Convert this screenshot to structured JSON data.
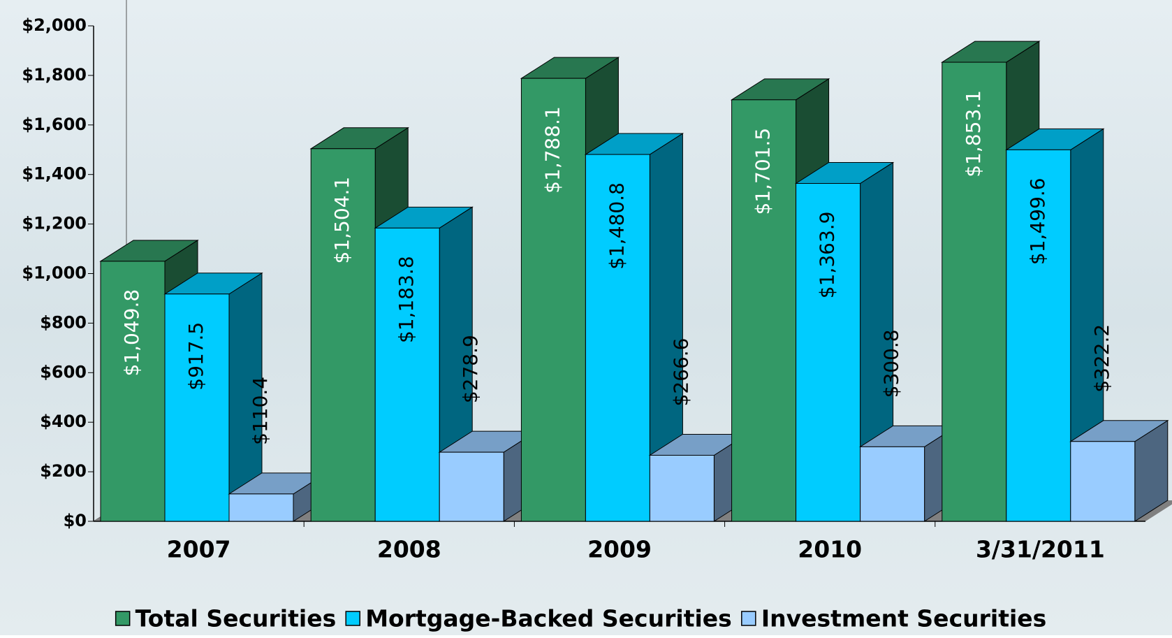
{
  "chart_data": {
    "type": "bar3d",
    "categories": [
      "2007",
      "2008",
      "2009",
      "2010",
      "3/31/2011"
    ],
    "series": [
      {
        "name": "Total Securities",
        "color": "#339966",
        "values": [
          1049.8,
          1504.1,
          1788.1,
          1701.5,
          1853.1
        ],
        "value_labels": [
          "$1,049.8",
          "$1,504.1",
          "$1,788.1",
          "$1,701.5",
          "$1,853.1"
        ]
      },
      {
        "name": "Mortgage-Backed Securities",
        "color": "#00ccff",
        "values": [
          917.5,
          1183.8,
          1480.8,
          1363.9,
          1499.6
        ],
        "value_labels": [
          "$917.5",
          "$1,183.8",
          "$1,480.8",
          "$1,363.9",
          "$1,499.6"
        ]
      },
      {
        "name": "Investment Securities",
        "color": "#99ccff",
        "values": [
          110.4,
          278.9,
          266.6,
          300.8,
          322.2
        ],
        "value_labels": [
          "$110.4",
          "$278.9",
          "$266.6",
          "$300.8",
          "$322.2"
        ]
      }
    ],
    "ylim": [
      0,
      2000
    ],
    "yticks": [
      {
        "value": 0,
        "label": "$0"
      },
      {
        "value": 200,
        "label": "$200"
      },
      {
        "value": 400,
        "label": "$400"
      },
      {
        "value": 600,
        "label": "$600"
      },
      {
        "value": 800,
        "label": "$800"
      },
      {
        "value": 1000,
        "label": "$1,000"
      },
      {
        "value": 1200,
        "label": "$1,200"
      },
      {
        "value": 1400,
        "label": "$1,400"
      },
      {
        "value": 1600,
        "label": "$1,600"
      },
      {
        "value": 1800,
        "label": "$1,800"
      },
      {
        "value": 2000,
        "label": "$2,000"
      }
    ],
    "legend": "bottom"
  }
}
